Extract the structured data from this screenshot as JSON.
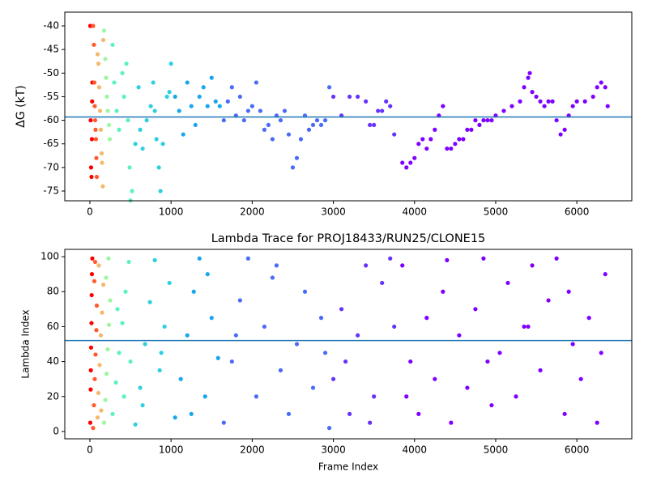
{
  "chart_data": [
    {
      "type": "scatter",
      "ylabel": "ΔG (kT)",
      "xlim": [
        -309,
        6677
      ],
      "ylim": [
        -77.06,
        -37.08
      ],
      "xticks": [
        0,
        1000,
        2000,
        3000,
        4000,
        5000,
        6000
      ],
      "yticks": [
        -75,
        -70,
        -65,
        -60,
        -55,
        -50,
        -45,
        -40
      ],
      "hline": -59.3,
      "hline_color": "#1f77b4",
      "series": [
        {
          "color": "#ff0000",
          "x": [
            5,
            10,
            15,
            20,
            25,
            30,
            28
          ],
          "values": [
            -40,
            -60,
            -70,
            -72,
            -64,
            -52,
            -56
          ]
        },
        {
          "color": "#ff5a2e",
          "x": [
            40,
            50,
            55,
            60,
            65,
            70,
            75,
            80,
            85
          ],
          "values": [
            -40,
            -44,
            -52,
            -57,
            -60,
            -62,
            -64,
            -68,
            -72
          ]
        },
        {
          "color": "#f5b86d",
          "x": [
            95,
            105,
            115,
            125,
            135,
            145,
            150,
            160,
            165
          ],
          "values": [
            -46,
            -48,
            -53,
            -58,
            -62,
            -67,
            -69,
            -74,
            -43
          ]
        },
        {
          "color": "#9ef7a0",
          "x": [
            175,
            190,
            200,
            210,
            220,
            235,
            245
          ],
          "values": [
            -41,
            -47,
            -51,
            -55,
            -58,
            -61,
            -64
          ]
        },
        {
          "color": "#5cf0c5",
          "x": [
            280,
            300,
            330,
            360,
            400,
            420,
            450,
            470,
            490,
            500,
            520
          ],
          "values": [
            -44,
            -52,
            -58,
            -62,
            -50,
            -55,
            -48,
            -60,
            -70,
            -77,
            -75
          ]
        },
        {
          "color": "#2dd0e0",
          "x": [
            560,
            600,
            620,
            650,
            700,
            750,
            780,
            800,
            820,
            850,
            870,
            900,
            950,
            980,
            1000
          ],
          "values": [
            -65,
            -53,
            -62,
            -66,
            -60,
            -57,
            -52,
            -58,
            -64,
            -70,
            -75,
            -65,
            -55,
            -54,
            -48
          ]
        },
        {
          "color": "#1aa6ec",
          "x": [
            1050,
            1100,
            1150,
            1200,
            1250,
            1300,
            1350,
            1400,
            1450,
            1500,
            1550,
            1600
          ],
          "values": [
            -55,
            -58,
            -63,
            -52,
            -57,
            -61,
            -55,
            -53,
            -57,
            -51,
            -56,
            -57
          ]
        },
        {
          "color": "#4a6bf6",
          "x": [
            1650,
            1700,
            1750,
            1800,
            1850,
            1900,
            1950,
            2000,
            2050,
            2100,
            2150,
            2200,
            2250,
            2300,
            2350,
            2400,
            2450,
            2500,
            2550,
            2600,
            2650,
            2700,
            2750,
            2800,
            2850,
            2900,
            2950
          ],
          "values": [
            -60,
            -56,
            -53,
            -59,
            -55,
            -60,
            -58,
            -57,
            -52,
            -58,
            -62,
            -61,
            -64,
            -59,
            -60,
            -58,
            -63,
            -70,
            -68,
            -64,
            -59,
            -62,
            -61,
            -60,
            -61,
            -60,
            -53
          ]
        },
        {
          "color": "#6633fa",
          "x": [
            3000,
            3100,
            3200,
            3300,
            3400,
            3450,
            3500,
            3550,
            3600,
            3650,
            3700,
            3750
          ],
          "values": [
            -55,
            -59,
            -55,
            -55,
            -56,
            -61,
            -61,
            -58,
            -58,
            -56,
            -57,
            -63
          ]
        },
        {
          "color": "#8000ff",
          "x": [
            3850,
            3900,
            3950,
            4000,
            4050,
            4100,
            4150,
            4200,
            4250,
            4300,
            4350,
            4400,
            4450,
            4500,
            4550,
            4600,
            4650,
            4700,
            4750,
            4800,
            4850,
            4900,
            4950,
            5000,
            5100,
            5200,
            5300,
            5350,
            5400,
            5420,
            5450,
            5500,
            5550,
            5600,
            5650,
            5700,
            5750,
            5800,
            5850,
            5900,
            5950,
            6000,
            6100,
            6200,
            6250,
            6300,
            6350,
            6380
          ],
          "values": [
            -69,
            -70,
            -69,
            -68,
            -65,
            -64,
            -66,
            -64,
            -62,
            -59,
            -57,
            -66,
            -66,
            -65,
            -64,
            -64,
            -62,
            -62,
            -60,
            -61,
            -60,
            -60,
            -60,
            -59,
            -58,
            -57,
            -56,
            -53,
            -51,
            -50,
            -54,
            -55,
            -56,
            -57,
            -56,
            -56,
            -60,
            -63,
            -62,
            -59,
            -57,
            -56,
            -56,
            -55,
            -53,
            -52,
            -53,
            -57
          ]
        }
      ]
    },
    {
      "type": "scatter",
      "title": "Lambda Trace for PROJ18433/RUN25/CLONE15",
      "xlabel": "Frame Index",
      "ylabel": "Lambda Index",
      "xlim": [
        -309,
        6677
      ],
      "ylim": [
        -4.2,
        104.2
      ],
      "xticks": [
        0,
        1000,
        2000,
        3000,
        4000,
        5000,
        6000
      ],
      "yticks": [
        0,
        20,
        40,
        60,
        80,
        100
      ],
      "hline": 52,
      "hline_color": "#1f77b4",
      "series": [
        {
          "color": "#ff0000",
          "x": [
            5,
            10,
            15,
            20,
            25,
            30,
            12,
            22
          ],
          "values": [
            5,
            24,
            48,
            62,
            90,
            99,
            35,
            78
          ]
        },
        {
          "color": "#ff5a2e",
          "x": [
            40,
            50,
            60,
            70,
            80,
            85,
            55,
            65
          ],
          "values": [
            2,
            15,
            30,
            44,
            58,
            72,
            86,
            97
          ]
        },
        {
          "color": "#f5b86d",
          "x": [
            95,
            105,
            120,
            135,
            150,
            165,
            110,
            140
          ],
          "values": [
            8,
            22,
            38,
            55,
            68,
            84,
            95,
            12
          ]
        },
        {
          "color": "#9ef7a0",
          "x": [
            175,
            190,
            205,
            220,
            235,
            250,
            200,
            230
          ],
          "values": [
            5,
            18,
            33,
            47,
            61,
            75,
            88,
            99
          ]
        },
        {
          "color": "#5cf0c5",
          "x": [
            280,
            320,
            360,
            400,
            440,
            480,
            500,
            340,
            420
          ],
          "values": [
            10,
            28,
            45,
            62,
            80,
            97,
            40,
            70,
            20
          ]
        },
        {
          "color": "#2dd0e0",
          "x": [
            560,
            620,
            680,
            740,
            800,
            860,
            920,
            980,
            650,
            880
          ],
          "values": [
            4,
            25,
            50,
            74,
            98,
            35,
            60,
            85,
            15,
            45
          ]
        },
        {
          "color": "#1aa6ec",
          "x": [
            1050,
            1120,
            1200,
            1280,
            1350,
            1420,
            1500,
            1580,
            1250,
            1450
          ],
          "values": [
            8,
            30,
            55,
            80,
            99,
            20,
            65,
            42,
            10,
            90
          ]
        },
        {
          "color": "#4a6bf6",
          "x": [
            1650,
            1750,
            1850,
            1950,
            2050,
            2150,
            2250,
            2350,
            2450,
            2550,
            2650,
            2750,
            2850,
            2950,
            1800,
            2300,
            2900
          ],
          "values": [
            5,
            40,
            75,
            99,
            20,
            60,
            88,
            35,
            10,
            50,
            80,
            25,
            65,
            2,
            55,
            95,
            45
          ]
        },
        {
          "color": "#6633fa",
          "x": [
            3000,
            3100,
            3200,
            3300,
            3400,
            3500,
            3600,
            3700,
            3750,
            3150,
            3450
          ],
          "values": [
            30,
            70,
            10,
            55,
            95,
            20,
            85,
            99,
            60,
            40,
            5
          ]
        },
        {
          "color": "#8000ff",
          "x": [
            3850,
            3950,
            4050,
            4150,
            4250,
            4350,
            4450,
            4550,
            4650,
            4750,
            4850,
            4950,
            5050,
            5150,
            5250,
            5350,
            5450,
            5550,
            5650,
            5750,
            5850,
            5950,
            6050,
            6150,
            6250,
            6350,
            3900,
            4400,
            4900,
            5400,
            5900,
            6300
          ],
          "values": [
            95,
            40,
            10,
            65,
            30,
            80,
            5,
            55,
            25,
            70,
            99,
            15,
            45,
            85,
            20,
            60,
            95,
            35,
            75,
            99,
            10,
            50,
            30,
            65,
            5,
            90,
            20,
            98,
            40,
            60,
            80,
            45
          ]
        }
      ]
    }
  ]
}
